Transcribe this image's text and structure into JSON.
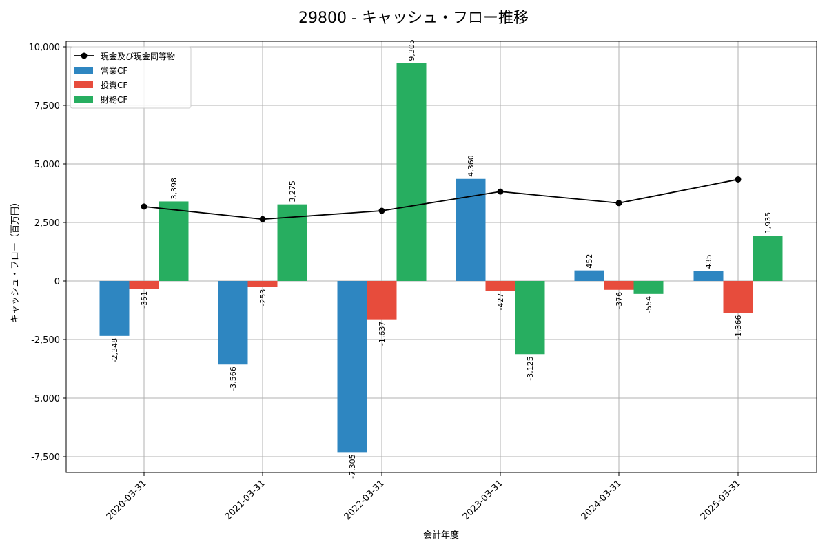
{
  "chart_data": {
    "type": "bar",
    "title": "29800 - キャッシュ・フロー推移",
    "xlabel": "会計年度",
    "ylabel": "キャッシュ・フロー（百万円）",
    "categories": [
      "2020-03-31",
      "2021-03-31",
      "2022-03-31",
      "2023-03-31",
      "2024-03-31",
      "2025-03-31"
    ],
    "ylim": [
      -8200,
      10000
    ],
    "yticks": [
      -7500,
      -5000,
      -2500,
      0,
      2500,
      5000,
      7500,
      10000
    ],
    "ytick_labels": [
      "-7,500",
      "-5,000",
      "-2,500",
      "0",
      "2,500",
      "5,000",
      "7,500",
      "10,000"
    ],
    "grid": true,
    "legend_position": "top-left",
    "series": [
      {
        "name": "営業CF",
        "kind": "bar",
        "color": "#2e86c1",
        "values": [
          -2348,
          -3566,
          -7305,
          4360,
          452,
          435
        ],
        "labels": [
          "-2,348",
          "-3,566",
          "-7,305",
          "4,360",
          "452",
          "435"
        ]
      },
      {
        "name": "投資CF",
        "kind": "bar",
        "color": "#e74c3c",
        "values": [
          -351,
          -253,
          -1637,
          -427,
          -376,
          -1366
        ],
        "labels": [
          "-351",
          "-253",
          "-1,637",
          "-427",
          "-376",
          "-1,366"
        ]
      },
      {
        "name": "財務CF",
        "kind": "bar",
        "color": "#27ae60",
        "values": [
          3398,
          3275,
          9305,
          -3125,
          -554,
          1935
        ],
        "labels": [
          "3,398",
          "3,275",
          "9,305",
          "-3,125",
          "-554",
          "1,935"
        ]
      },
      {
        "name": "現金及び現金同等物",
        "kind": "line",
        "color": "#000000",
        "values": [
          3180,
          2640,
          3000,
          3820,
          3330,
          4340
        ]
      }
    ],
    "legend_order": [
      "現金及び現金同等物",
      "営業CF",
      "投資CF",
      "財務CF"
    ]
  }
}
